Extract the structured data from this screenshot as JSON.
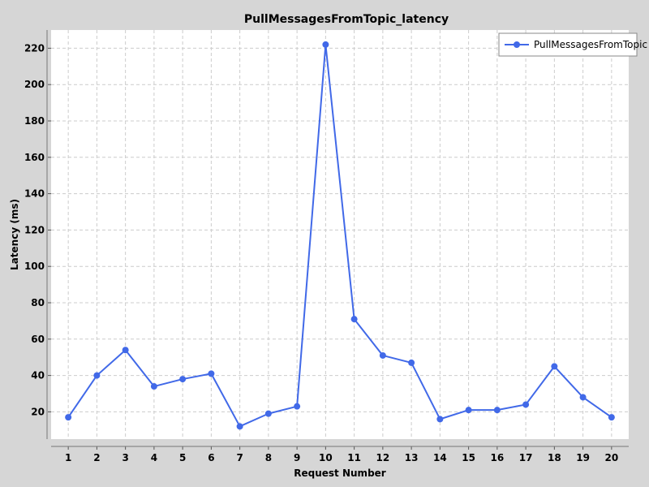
{
  "chart_data": {
    "type": "line",
    "title": "PullMessagesFromTopic_latency",
    "xlabel": "Request Number",
    "ylabel": "Latency (ms)",
    "x": [
      1,
      2,
      3,
      4,
      5,
      6,
      7,
      8,
      9,
      10,
      11,
      12,
      13,
      14,
      15,
      16,
      17,
      18,
      19,
      20
    ],
    "xlim": [
      0.4,
      20.6
    ],
    "ylim": [
      5,
      230
    ],
    "yticks": [
      20,
      40,
      60,
      80,
      100,
      120,
      140,
      160,
      180,
      200,
      220
    ],
    "grid": true,
    "legend_position": "top-right",
    "series": [
      {
        "name": "PullMessagesFromTopic",
        "color": "#4169e8",
        "values": [
          17,
          40,
          54,
          34,
          38,
          41,
          12,
          19,
          23,
          222,
          71,
          51,
          47,
          16,
          21,
          21,
          24,
          45,
          28,
          17
        ]
      }
    ]
  }
}
